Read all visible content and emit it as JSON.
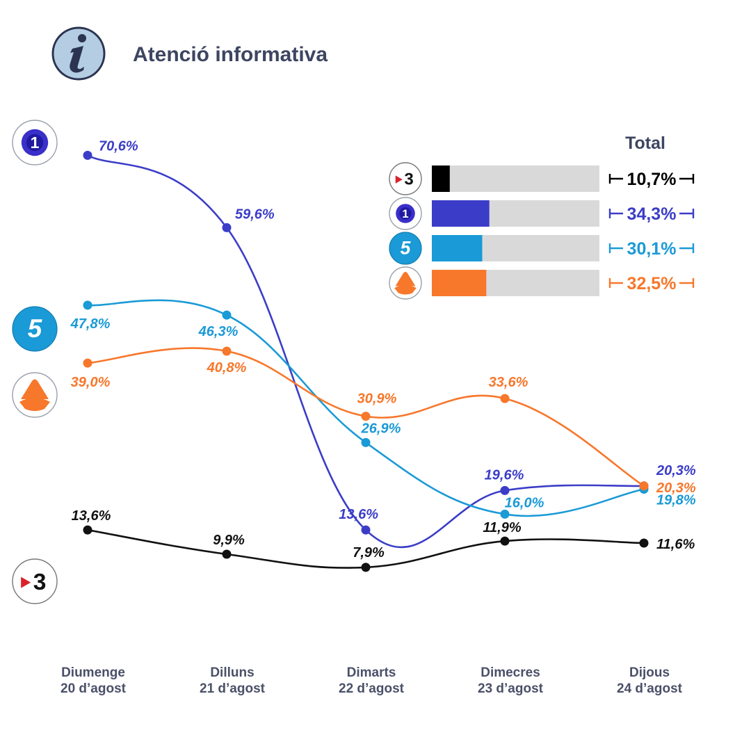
{
  "header": {
    "title": "Atenció informativa",
    "icon": "info-icon"
  },
  "chart_data": {
    "type": "line",
    "categories": [
      [
        "Diumenge",
        "20 d’agost"
      ],
      [
        "Dilluns",
        "21 d’agost"
      ],
      [
        "Dimarts",
        "22 d’agost"
      ],
      [
        "Dimecres",
        "23 d’agost"
      ],
      [
        "Dijous",
        "24 d’agost"
      ]
    ],
    "y_unit": "%",
    "series": [
      {
        "channel": "la1",
        "color": "#3b3dc8",
        "values": [
          70.6,
          59.6,
          13.6,
          19.6,
          20.3
        ],
        "labels": [
          "70,6%",
          "59,6%",
          "13,6%",
          "19,6%",
          "20,3%"
        ]
      },
      {
        "channel": "telecinco",
        "color": "#1a9ad6",
        "values": [
          47.8,
          46.3,
          26.9,
          16.0,
          19.8
        ],
        "labels": [
          "47,8%",
          "46,3%",
          "26,9%",
          "16,0%",
          "19,8%"
        ]
      },
      {
        "channel": "antena3",
        "color": "#f7772b",
        "values": [
          39.0,
          40.8,
          30.9,
          33.6,
          20.3
        ],
        "labels": [
          "39,0%",
          "40,8%",
          "30,9%",
          "33,6%",
          "20,3%"
        ]
      },
      {
        "channel": "tv3",
        "color": "#111111",
        "values": [
          13.6,
          9.9,
          7.9,
          11.9,
          11.6
        ],
        "labels": [
          "13,6%",
          "9,9%",
          "7,9%",
          "11,9%",
          "11,6%"
        ]
      }
    ],
    "totals": {
      "title": "Total",
      "bar_track_color": "#d9d9d9",
      "items": [
        {
          "channel": "tv3",
          "value": 10.7,
          "label": "10,7%",
          "color": "#000000"
        },
        {
          "channel": "la1",
          "value": 34.3,
          "label": "34,3%",
          "color": "#3b3dc8"
        },
        {
          "channel": "telecinco",
          "value": 30.1,
          "label": "30,1%",
          "color": "#1a9ad6"
        },
        {
          "channel": "antena3",
          "value": 32.5,
          "label": "32,5%",
          "color": "#f7772b"
        }
      ]
    }
  },
  "logos": {
    "la1": {
      "text": "1",
      "icon": "la1-logo-icon"
    },
    "telecinco": {
      "text": "5",
      "icon": "telecinco-logo-icon"
    },
    "antena3": {
      "text": "",
      "icon": "antena3-logo-icon"
    },
    "tv3": {
      "text": "3",
      "icon": "tv3-logo-icon"
    }
  }
}
